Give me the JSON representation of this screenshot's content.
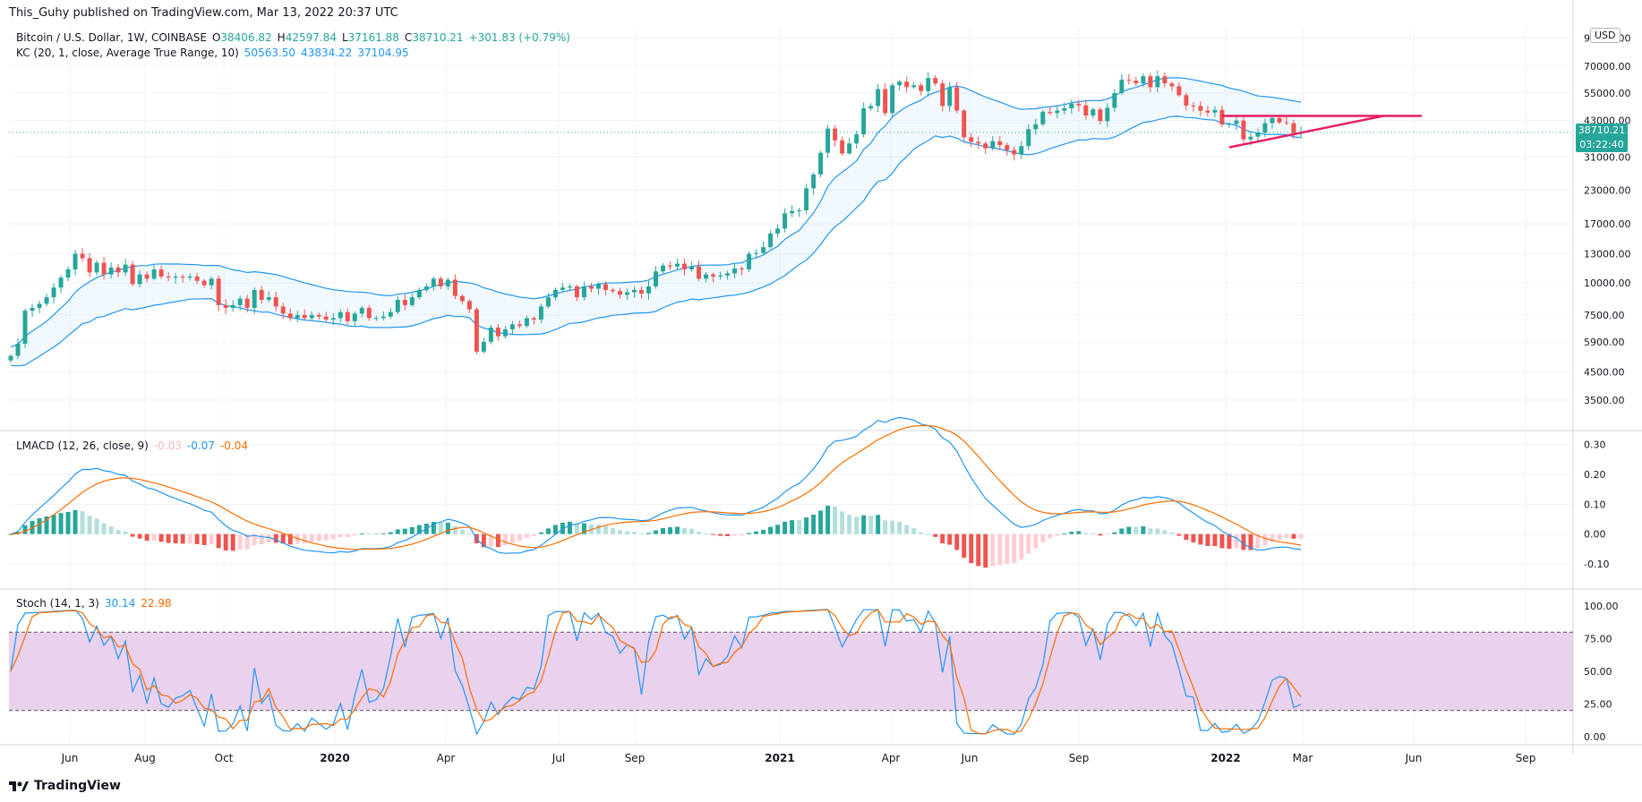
{
  "header": {
    "publisher": "This_Guhy published on TradingView.com, Mar 13, 2022 20:37 UTC"
  },
  "symbol": {
    "name": "Bitcoin / U.S. Dollar, 1W, COINBASE",
    "open_label": "O",
    "open": "38406.82",
    "high_label": "H",
    "high": "42597.84",
    "low_label": "L",
    "low": "37161.88",
    "close_label": "C",
    "close": "38710.21",
    "change": "+301.83 (+0.79%)"
  },
  "kc": {
    "label": "KC (20, 1, close, Average True Range, 10)",
    "upper": "50563.50",
    "middle": "43834.22",
    "lower": "37104.95"
  },
  "lmacd": {
    "label": "LMACD (12, 26, close, 9)",
    "hist": "-0.03",
    "macd": "-0.07",
    "signal": "-0.04"
  },
  "stoch": {
    "label": "Stoch (14, 1, 3)",
    "k": "30.14",
    "d": "22.98"
  },
  "price_scale": {
    "currency": "USD",
    "current_price": "38710.21",
    "countdown": "03:22:40"
  },
  "branding": {
    "logo_text": "TradingView"
  },
  "colors": {
    "up": "#26a69a",
    "down": "#ef5350",
    "kc_band": "#2196f3",
    "macd": "#2196f3",
    "signal": "#ff6d00",
    "stoch_k": "#2196f3",
    "stoch_d": "#ff6d00",
    "stoch_bg": "#e1bee7",
    "trend": "#e91e63"
  },
  "chart_data": [
    {
      "type": "candlestick",
      "title": "Bitcoin / U.S. Dollar, 1W, COINBASE",
      "scale": "log",
      "y_ticks": [
        "90000.00",
        "70000.00",
        "55000.00",
        "43000.00",
        "31000.00",
        "23000.00",
        "17000.00",
        "13000.00",
        "10000.00",
        "7500.00",
        "5900.00",
        "4500.00",
        "3500.00"
      ],
      "x_ticks": [
        "Jun",
        "Aug",
        "Oct",
        "2020",
        "Apr",
        "Jul",
        "Sep",
        "2021",
        "Apr",
        "Jun",
        "Sep",
        "2022",
        "Mar",
        "Jun",
        "Sep"
      ],
      "series_close": [
        5200,
        5800,
        7800,
        8000,
        8300,
        8800,
        9600,
        10500,
        11300,
        13000,
        12500,
        11000,
        12000,
        10800,
        11500,
        11000,
        11800,
        9900,
        10800,
        10400,
        11300,
        10600,
        10500,
        10600,
        10500,
        10600,
        10200,
        9800,
        10400,
        8200,
        8000,
        8200,
        8700,
        8000,
        9400,
        8600,
        8800,
        8100,
        7600,
        7300,
        7500,
        7300,
        7500,
        7400,
        7200,
        7300,
        7700,
        7100,
        7600,
        8000,
        7300,
        7300,
        7400,
        7700,
        8600,
        8200,
        8800,
        9400,
        9700,
        10400,
        9700,
        10300,
        8900,
        8500,
        7900,
        5400,
        5900,
        6700,
        6200,
        6600,
        6900,
        6800,
        7300,
        7200,
        8100,
        8800,
        9400,
        9600,
        9700,
        8800,
        9700,
        9500,
        9900,
        9400,
        9300,
        9000,
        9200,
        9400,
        9100,
        9700,
        11100,
        11700,
        11600,
        11900,
        11300,
        11600,
        10400,
        10800,
        10600,
        10700,
        10900,
        11400,
        11300,
        13000,
        13100,
        13800,
        15600,
        16300,
        18700,
        19100,
        19200,
        23400,
        26500,
        32200,
        40000,
        36000,
        32000,
        35000,
        38000,
        48000,
        49000,
        57000,
        46000,
        59000,
        61000,
        58000,
        59000,
        56000,
        63000,
        60000,
        49000,
        58000,
        47000,
        37000,
        35500,
        35000,
        33500,
        35700,
        34500,
        33000,
        31700,
        34200,
        39800,
        41600,
        46500,
        46000,
        47000,
        48000,
        50000,
        49300,
        45000,
        47500,
        42800,
        48200,
        55000,
        62000,
        61500,
        60000,
        64000,
        58000,
        64000,
        60000,
        58500,
        54000,
        49200,
        49000,
        47000,
        46200,
        47300,
        41500,
        41700,
        43000,
        36300,
        37200,
        38600,
        42000,
        44000,
        42300,
        42000,
        38400,
        38700
      ]
    },
    {
      "type": "line",
      "title": "LMACD (12, 26, close, 9)",
      "y_ticks": [
        "0.30",
        "0.20",
        "0.10",
        "0.00",
        "-0.10"
      ],
      "series": [
        {
          "name": "MACD",
          "last": -0.07
        },
        {
          "name": "Signal",
          "last": -0.04
        }
      ]
    },
    {
      "type": "line",
      "title": "Stoch (14, 1, 3)",
      "y_ticks": [
        "100.00",
        "75.00",
        "50.00",
        "25.00",
        "0.00"
      ],
      "bands": [
        20,
        80
      ],
      "series": [
        {
          "name": "%K",
          "last": 30.14
        },
        {
          "name": "%D",
          "last": 22.98
        }
      ]
    }
  ]
}
